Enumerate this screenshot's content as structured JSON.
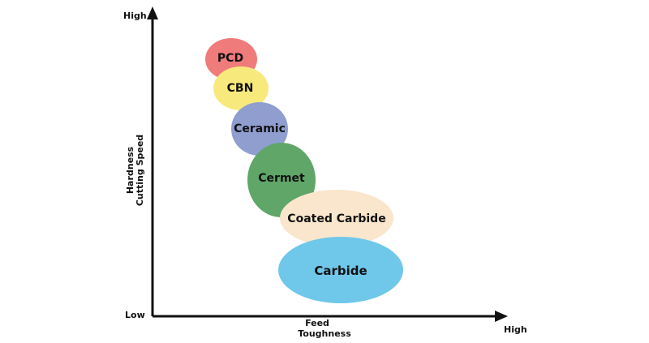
{
  "y_axis": {
    "high_label": "High",
    "low_label": "Low",
    "title_line1": "Hardness",
    "title_line2": "Cutting Speed"
  },
  "x_axis": {
    "high_label": "High",
    "title_line1": "Feed",
    "title_line2": "Toughness"
  },
  "materials": [
    {
      "name": "PCD",
      "color": "#f07b7b"
    },
    {
      "name": "CBN",
      "color": "#f8e97c"
    },
    {
      "name": "Ceramic",
      "color": "#8f9dcf"
    },
    {
      "name": "Cermet",
      "color": "#5fa668"
    },
    {
      "name": "Coated Carbide",
      "color": "#f9e6cd"
    },
    {
      "name": "Carbide",
      "color": "#6fc7ea"
    }
  ],
  "axis_color": "#111111"
}
